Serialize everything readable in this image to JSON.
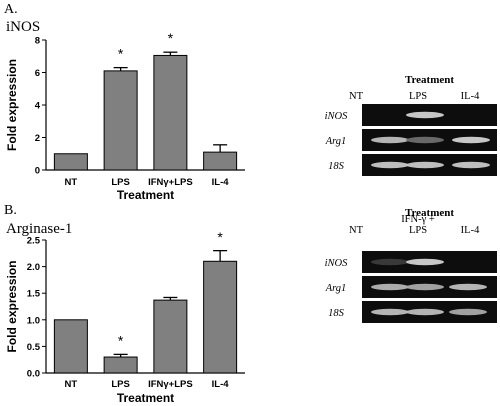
{
  "panels": [
    {
      "letter": "A.",
      "gene_title": "iNOS",
      "chart_data": {
        "type": "bar",
        "title": "iNOS",
        "categories": [
          "NT",
          "LPS",
          "IFNγ+LPS",
          "IL-4"
        ],
        "values": [
          1.0,
          6.1,
          7.05,
          1.1
        ],
        "errors": [
          0,
          0.2,
          0.2,
          0.45
        ],
        "significant": [
          "",
          "*",
          "*",
          ""
        ],
        "xlabel": "Treatment",
        "ylabel": "Fold expression",
        "ylim": [
          0,
          8
        ],
        "yticks": [
          "0",
          "2",
          "4",
          "6",
          "8"
        ],
        "bar_color": "#808080"
      },
      "gel": {
        "header": "Treatment",
        "lanes": [
          "NT",
          "LPS",
          "IL-4"
        ],
        "rows": [
          {
            "label": "iNOS",
            "intensity": [
              0.0,
              0.85,
              0.0
            ]
          },
          {
            "label": "Arg1",
            "intensity": [
              0.75,
              0.35,
              0.85
            ]
          },
          {
            "label": "18S",
            "intensity": [
              0.8,
              0.8,
              0.8
            ]
          }
        ]
      }
    },
    {
      "letter": "B.",
      "gene_title": "Arginase-1",
      "chart_data": {
        "type": "bar",
        "title": "Arginase-1",
        "categories": [
          "NT",
          "LPS",
          "IFNγ+LPS",
          "IL-4"
        ],
        "values": [
          1.0,
          0.3,
          1.37,
          2.1
        ],
        "errors": [
          0,
          0.05,
          0.05,
          0.2
        ],
        "significant": [
          "",
          "*",
          "",
          "*"
        ],
        "xlabel": "Treatment",
        "ylabel": "Fold expression",
        "ylim": [
          0,
          2.5
        ],
        "yticks": [
          "0.0",
          "0.5",
          "1.0",
          "1.5",
          "2.0",
          "2.5"
        ],
        "bar_color": "#808080"
      },
      "gel": {
        "header": "Treatment",
        "lanes": [
          "NT",
          "IFN-γ +\nLPS",
          "IL-4"
        ],
        "rows": [
          {
            "label": "iNOS",
            "intensity": [
              0.1,
              0.85,
              0.0
            ]
          },
          {
            "label": "Arg1",
            "intensity": [
              0.7,
              0.65,
              0.75
            ]
          },
          {
            "label": "18S",
            "intensity": [
              0.75,
              0.75,
              0.65
            ]
          }
        ]
      }
    }
  ]
}
